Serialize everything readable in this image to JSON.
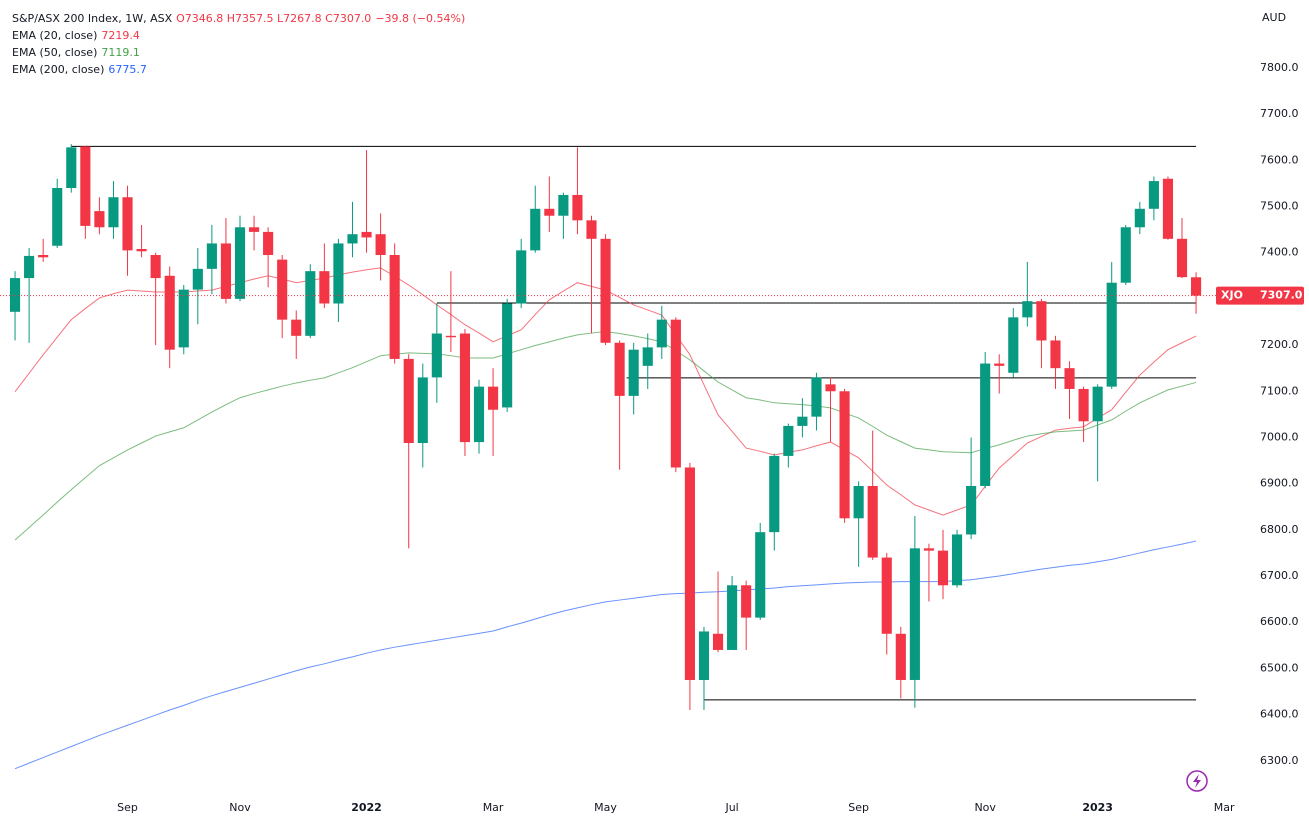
{
  "chart_data": {
    "type": "candlestick",
    "title": "S&P/ASX 200 Index, 1W, ASX",
    "ohlc_text": "O7346.8 H7357.5 L7267.8 C7307.0",
    "change": "−39.8 (−0.54%)",
    "currency": "AUD",
    "price_tag": {
      "symbol": "XJO",
      "label": "7307.0"
    },
    "grid": false,
    "up_color": "#089981",
    "down_color": "#f23645",
    "open": [
      7272,
      7345,
      7395,
      7415,
      7540,
      7630,
      7490,
      7455,
      7520,
      7408,
      7395,
      7350,
      7195,
      7320,
      7365,
      7420,
      7300,
      7455,
      7445,
      7385,
      7255,
      7220,
      7360,
      7290,
      7420,
      7445,
      7440,
      7395,
      7170,
      6988,
      7130,
      7220,
      7225,
      6990,
      7110,
      7065,
      7290,
      7405,
      7495,
      7480,
      7525,
      7470,
      7430,
      7205,
      7090,
      7155,
      7195,
      7255,
      6935,
      6475,
      6575,
      6540,
      6680,
      6610,
      6795,
      6960,
      7025,
      7045,
      7115,
      7100,
      6825,
      6895,
      6740,
      6575,
      6475,
      6760,
      6755,
      6680,
      6790,
      6895,
      7160,
      7140,
      7260,
      7295,
      7210,
      7150,
      7105,
      7035,
      7110,
      7335,
      7455,
      7495,
      7560,
      7430,
      7346.8
    ],
    "high": [
      7360,
      7410,
      7430,
      7560,
      7635,
      7632,
      7520,
      7555,
      7545,
      7460,
      7400,
      7370,
      7330,
      7410,
      7460,
      7475,
      7480,
      7480,
      7455,
      7395,
      7275,
      7375,
      7420,
      7430,
      7510,
      7622,
      7485,
      7420,
      7180,
      7160,
      7290,
      7360,
      7235,
      7125,
      7150,
      7300,
      7430,
      7545,
      7565,
      7530,
      7628,
      7480,
      7440,
      7210,
      7205,
      7225,
      7285,
      7260,
      6945,
      6590,
      6710,
      6700,
      6690,
      6815,
      6965,
      7030,
      7085,
      7140,
      7130,
      7105,
      6905,
      7015,
      6750,
      6590,
      6830,
      6770,
      6800,
      6800,
      7000,
      7185,
      7180,
      7280,
      7380,
      7300,
      7220,
      7165,
      7110,
      7115,
      7380,
      7460,
      7510,
      7565,
      7565,
      7475,
      7357.5
    ],
    "low": [
      7210,
      7205,
      7380,
      7410,
      7530,
      7430,
      7440,
      7430,
      7350,
      7390,
      7200,
      7150,
      7180,
      7245,
      7310,
      7290,
      7295,
      7405,
      7325,
      7215,
      7170,
      7215,
      7280,
      7250,
      7390,
      7400,
      7340,
      7160,
      6760,
      6935,
      7075,
      7185,
      6960,
      6965,
      6960,
      7055,
      7280,
      7400,
      7445,
      7430,
      7440,
      7225,
      7200,
      6930,
      7050,
      7105,
      7170,
      6925,
      6410,
      6410,
      6535,
      6540,
      6540,
      6605,
      6755,
      6935,
      7000,
      7015,
      6990,
      6815,
      6720,
      6735,
      6530,
      6435,
      6415,
      6645,
      6650,
      6675,
      6780,
      6890,
      7095,
      7130,
      7240,
      7150,
      7105,
      7040,
      6990,
      6905,
      7105,
      7330,
      7440,
      7470,
      7428,
      7345,
      7267.8
    ],
    "close": [
      7345,
      7393,
      7390,
      7540,
      7628,
      7458,
      7455,
      7520,
      7405,
      7403,
      7345,
      7190,
      7320,
      7365,
      7420,
      7300,
      7455,
      7445,
      7395,
      7255,
      7220,
      7360,
      7290,
      7420,
      7440,
      7433,
      7395,
      7170,
      6988,
      7130,
      7225,
      7217,
      6990,
      7110,
      7060,
      7290,
      7405,
      7495,
      7480,
      7525,
      7470,
      7430,
      7205,
      7090,
      7190,
      7195,
      7255,
      6935,
      6475,
      6580,
      6540,
      6680,
      6610,
      6795,
      6960,
      7025,
      7045,
      7130,
      7100,
      6825,
      6895,
      6740,
      6575,
      6475,
      6760,
      6755,
      6680,
      6790,
      6895,
      7160,
      7155,
      7260,
      7295,
      7210,
      7150,
      7105,
      7035,
      7110,
      7335,
      7455,
      7495,
      7555,
      7430,
      7347,
      7307.0
    ],
    "series": [
      {
        "name": "EMA (20, close)",
        "color": "#f23645",
        "values": [
          7099,
          7139,
          7179,
          7217,
          7255,
          7279,
          7302,
          7311,
          7319,
          7317,
          7315,
          7315,
          7315,
          7317,
          7319,
          7327,
          7335,
          7343,
          7350,
          7343,
          7335,
          7340,
          7345,
          7352,
          7358,
          7363,
          7367,
          7349,
          7330,
          7309,
          7287,
          7266,
          7244,
          7226,
          7207,
          7220,
          7233,
          7266,
          7298,
          7317,
          7335,
          7327,
          7319,
          7303,
          7287,
          7276,
          7265,
          7222,
          7179,
          7114,
          7049,
          7013,
          6977,
          6970,
          6962,
          6968,
          6973,
          6982,
          6990,
          6973,
          6956,
          6927,
          6897,
          6876,
          6854,
          6843,
          6832,
          6843,
          6854,
          6894,
          6934,
          6961,
          6988,
          7002,
          7016,
          7020,
          7023,
          7042,
          7060,
          7098,
          7135,
          7163,
          7190,
          7205,
          7219.4
        ]
      },
      {
        "name": "EMA (50, close)",
        "color": "#43a047",
        "values": [
          6778,
          6805,
          6832,
          6860,
          6887,
          6913,
          6939,
          6956,
          6973,
          6988,
          7003,
          7012,
          7021,
          7038,
          7055,
          7071,
          7086,
          7095,
          7103,
          7111,
          7118,
          7124,
          7129,
          7140,
          7151,
          7164,
          7177,
          7180,
          7183,
          7182,
          7181,
          7177,
          7172,
          7172,
          7172,
          7181,
          7190,
          7199,
          7207,
          7215,
          7222,
          7226,
          7229,
          7225,
          7220,
          7214,
          7207,
          7188,
          7168,
          7144,
          7120,
          7103,
          7086,
          7081,
          7075,
          7073,
          7071,
          7068,
          7064,
          7053,
          7042,
          7024,
          7005,
          6991,
          6977,
          6973,
          6969,
          6968,
          6967,
          6976,
          6984,
          6994,
          7003,
          7008,
          7012,
          7014,
          7016,
          7027,
          7038,
          7057,
          7075,
          7089,
          7103,
          7111,
          7119.1
        ]
      },
      {
        "name": "EMA (200, close)",
        "color": "#2962ff",
        "values": [
          6283,
          6295,
          6307,
          6319,
          6331,
          6343,
          6355,
          6366,
          6377,
          6388,
          6399,
          6410,
          6420,
          6431,
          6441,
          6450,
          6459,
          6468,
          6477,
          6486,
          6495,
          6503,
          6510,
          6518,
          6525,
          6533,
          6540,
          6546,
          6551,
          6556,
          6561,
          6566,
          6571,
          6576,
          6581,
          6590,
          6598,
          6607,
          6616,
          6624,
          6631,
          6638,
          6644,
          6648,
          6652,
          6656,
          6660,
          6662,
          6663,
          6665,
          6666,
          6668,
          6670,
          6672,
          6674,
          6677,
          6679,
          6681,
          6683,
          6685,
          6686,
          6687,
          6687,
          6688,
          6688,
          6688,
          6688,
          6690,
          6692,
          6696,
          6700,
          6705,
          6710,
          6715,
          6719,
          6723,
          6726,
          6731,
          6736,
          6743,
          6750,
          6757,
          6763,
          6769,
          6775.7
        ]
      }
    ],
    "levels": [
      {
        "value": 7630,
        "from": 4,
        "color": "#000000"
      },
      {
        "value": 7291,
        "from": 30,
        "color": "#000000"
      },
      {
        "value": 7129,
        "from": 43.5,
        "color": "#000000"
      },
      {
        "value": 6432,
        "from": 49,
        "color": "#000000"
      }
    ],
    "xlim": [
      -1.07,
      87.48
    ],
    "xticks": [
      {
        "value": 8,
        "label": "Sep"
      },
      {
        "value": 16,
        "label": "Nov"
      },
      {
        "value": 25,
        "label": "2022"
      },
      {
        "value": 34,
        "label": "Mar"
      },
      {
        "value": 42,
        "label": "May"
      },
      {
        "value": 51,
        "label": "Jul"
      },
      {
        "value": 60,
        "label": "Sep"
      },
      {
        "value": 69,
        "label": "Nov"
      },
      {
        "value": 77,
        "label": "2023"
      },
      {
        "value": 86,
        "label": "Mar"
      }
    ],
    "ylim": [
      6226,
      7947
    ],
    "yticks": [
      {
        "value": 6300,
        "label": "6300.0"
      },
      {
        "value": 6400,
        "label": "6400.0"
      },
      {
        "value": 6500,
        "label": "6500.0"
      },
      {
        "value": 6600,
        "label": "6600.0"
      },
      {
        "value": 6700,
        "label": "6700.0"
      },
      {
        "value": 6800,
        "label": "6800.0"
      },
      {
        "value": 6900,
        "label": "6900.0"
      },
      {
        "value": 7000,
        "label": "7000.0"
      },
      {
        "value": 7100,
        "label": "7100.0"
      },
      {
        "value": 7200,
        "label": "7200.0"
      },
      {
        "value": 7300,
        "label": "7300.0"
      },
      {
        "value": 7400,
        "label": "7400.0"
      },
      {
        "value": 7500,
        "label": "7500.0"
      },
      {
        "value": 7600,
        "label": "7600.0"
      },
      {
        "value": 7700,
        "label": "7700.0"
      },
      {
        "value": 7800,
        "label": "7800.0"
      }
    ]
  }
}
